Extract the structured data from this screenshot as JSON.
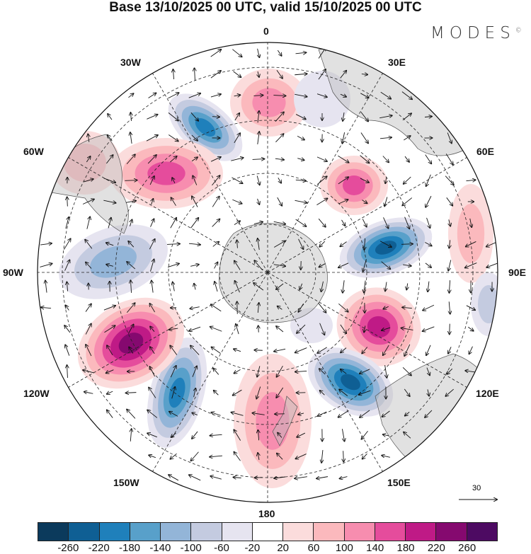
{
  "title": "Base 13/10/2025 00 UTC, valid 15/10/2025 00 UTC",
  "logo": "MODES",
  "logo_mark": "©",
  "longitude_labels": {
    "n": "0",
    "ne": "30E",
    "ene": "60E",
    "e": "90E",
    "ese": "120E",
    "se": "150E",
    "s": "180",
    "sw": "150W",
    "wsw": "120W",
    "w": "90W",
    "wnw": "60W",
    "nw": "30W"
  },
  "reference_vector": "30",
  "colorbar": {
    "colors": [
      "#0b3a5c",
      "#0f5f94",
      "#1f80bb",
      "#58a0ca",
      "#93b5d8",
      "#c4cbe0",
      "#e6e4f0",
      "#ffffff",
      "#fbdcdc",
      "#fbb9bd",
      "#f78daf",
      "#e54c9c",
      "#bf1a86",
      "#85096f",
      "#4d0a62"
    ],
    "ticks": [
      "-260",
      "-220",
      "-180",
      "-140",
      "-100",
      "-60",
      "-20",
      "20",
      "60",
      "100",
      "140",
      "180",
      "220",
      "260"
    ]
  }
}
